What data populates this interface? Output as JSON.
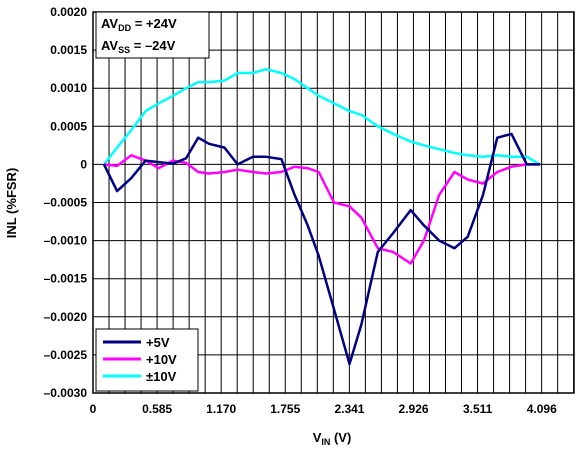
{
  "chart_data": {
    "type": "line",
    "title": "",
    "xlabel": {
      "main": "V",
      "sub": "IN",
      "unit": " (V)"
    },
    "ylabel": "INL (%FSR)",
    "xlim": [
      0,
      4.3905
    ],
    "ylim": [
      -0.003,
      0.002
    ],
    "x_ticks": [
      0,
      0.585,
      1.17,
      1.755,
      2.341,
      2.926,
      3.511,
      4.096
    ],
    "x_tick_labels": [
      "0",
      "0.585",
      "1.170",
      "1.755",
      "2.341",
      "2.926",
      "3.511",
      "4.096"
    ],
    "y_ticks": [
      0.002,
      0.0015,
      0.001,
      0.0005,
      0,
      -0.0005,
      -0.001,
      -0.0015,
      -0.002,
      -0.0025,
      -0.003
    ],
    "y_tick_labels": [
      "0.0020",
      "0.0015",
      "0.0010",
      "0.0005",
      "0",
      "–0.0005",
      "–0.0010",
      "–0.0015",
      "–0.0020",
      "–0.0025",
      "–0.0030"
    ],
    "grid": true,
    "legend_position": "bottom-left",
    "annotations": [
      {
        "main": "AV",
        "sub": "DD",
        "rest": " = +24V"
      },
      {
        "main": "AV",
        "sub": "SS",
        "rest": " = –24V"
      }
    ],
    "series": [
      {
        "name": "+5V",
        "color": "#000080",
        "x": [
          0.1,
          0.22,
          0.35,
          0.48,
          0.6,
          0.73,
          0.85,
          0.96,
          1.06,
          1.2,
          1.32,
          1.46,
          1.58,
          1.72,
          1.84,
          1.96,
          2.06,
          2.2,
          2.341,
          2.45,
          2.6,
          2.74,
          2.9,
          3.02,
          3.16,
          3.3,
          3.42,
          3.56,
          3.69,
          3.82,
          3.96,
          4.08
        ],
        "values": [
          0,
          -0.00035,
          -0.00018,
          5e-05,
          3e-05,
          1e-05,
          8e-05,
          0.00035,
          0.00027,
          0.00022,
          0,
          0.0001,
          0.0001,
          7e-05,
          -0.0004,
          -0.0008,
          -0.0012,
          -0.0019,
          -0.00262,
          -0.0021,
          -0.00115,
          -0.0009,
          -0.0006,
          -0.0008,
          -0.001,
          -0.0011,
          -0.00095,
          -0.0004,
          0.00035,
          0.0004,
          0,
          0
        ]
      },
      {
        "name": "+10V",
        "color": "#ff00ff",
        "x": [
          0.1,
          0.22,
          0.35,
          0.48,
          0.6,
          0.73,
          0.85,
          0.96,
          1.06,
          1.2,
          1.32,
          1.46,
          1.58,
          1.72,
          1.84,
          1.96,
          2.06,
          2.2,
          2.341,
          2.45,
          2.6,
          2.74,
          2.9,
          3.02,
          3.16,
          3.3,
          3.42,
          3.56,
          3.69,
          3.82,
          3.96,
          4.08
        ],
        "values": [
          0,
          -2e-05,
          0.00012,
          5e-05,
          -5e-05,
          5e-05,
          2e-05,
          -0.0001,
          -0.00012,
          -0.0001,
          -7e-05,
          -0.0001,
          -0.00012,
          -0.0001,
          -3e-05,
          -5e-05,
          -0.0001,
          -0.0005,
          -0.00055,
          -0.0007,
          -0.0011,
          -0.00115,
          -0.0013,
          -0.001,
          -0.0004,
          -0.0001,
          -0.0002,
          -0.00025,
          -0.0001,
          -3e-05,
          0,
          0
        ]
      },
      {
        "name": "±10V",
        "color": "#00ffff",
        "x": [
          0.1,
          0.22,
          0.35,
          0.48,
          0.6,
          0.73,
          0.85,
          0.96,
          1.06,
          1.2,
          1.32,
          1.46,
          1.58,
          1.72,
          1.84,
          1.96,
          2.06,
          2.2,
          2.341,
          2.45,
          2.6,
          2.74,
          2.9,
          3.02,
          3.16,
          3.3,
          3.42,
          3.56,
          3.69,
          3.82,
          3.96,
          4.08
        ],
        "values": [
          0,
          0.00022,
          0.00045,
          0.0007,
          0.0008,
          0.0009,
          0.001,
          0.00108,
          0.00108,
          0.0011,
          0.0012,
          0.0012,
          0.00125,
          0.0012,
          0.00112,
          0.001,
          0.0009,
          0.0008,
          0.0007,
          0.00065,
          0.0005,
          0.0004,
          0.0003,
          0.00025,
          0.0002,
          0.00015,
          0.00012,
          0.0001,
          0.00012,
          0.0001,
          0.0001,
          0
        ]
      }
    ]
  }
}
